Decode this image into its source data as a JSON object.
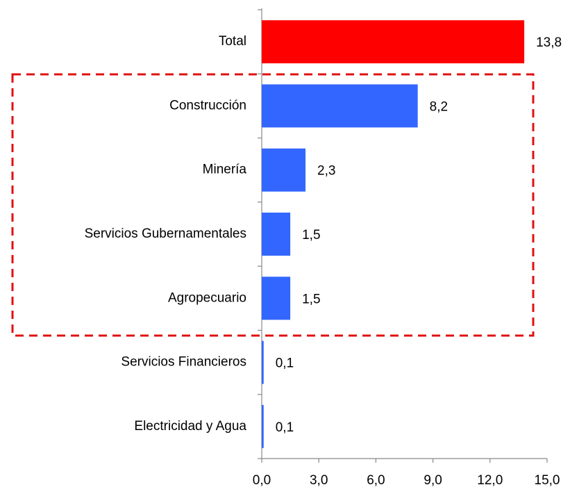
{
  "chart_data": {
    "type": "bar",
    "orientation": "horizontal",
    "categories": [
      "Total",
      "Construcción",
      "Minería",
      "Servicios Gubernamentales",
      "Agropecuario",
      "Servicios Financieros",
      "Electricidad y Agua"
    ],
    "values": [
      13.8,
      8.2,
      2.3,
      1.5,
      1.5,
      0.1,
      0.1
    ],
    "value_labels": [
      "13,8",
      "8,2",
      "2,3",
      "1,5",
      "1,5",
      "0,1",
      "0,1"
    ],
    "colors": [
      "#ff0000",
      "#3366ff",
      "#3366ff",
      "#3366ff",
      "#3366ff",
      "#3366ff",
      "#3366ff"
    ],
    "xlim": [
      0,
      15
    ],
    "xticks": [
      {
        "value": 0,
        "label": "0,0"
      },
      {
        "value": 3,
        "label": "3,0"
      },
      {
        "value": 6,
        "label": "6,0"
      },
      {
        "value": 9,
        "label": "9,0"
      },
      {
        "value": 12,
        "label": "12,0"
      },
      {
        "value": 15,
        "label": "15,0"
      }
    ],
    "grid": false
  }
}
